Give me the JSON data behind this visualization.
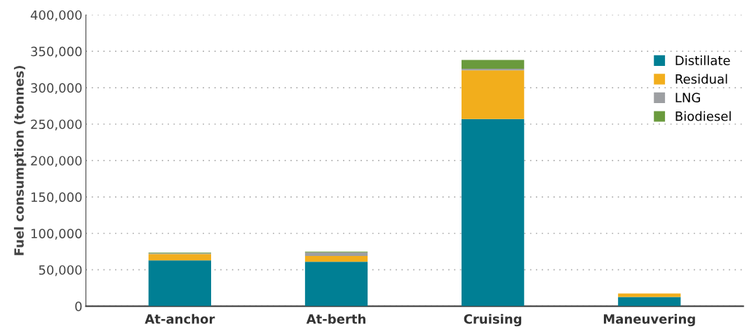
{
  "chart_data": {
    "type": "bar",
    "stacked": true,
    "ylabel": "Fuel consumption (tonnes)",
    "categories": [
      "At-anchor",
      "At-berth",
      "Cruising",
      "Maneuvering"
    ],
    "series": [
      {
        "name": "Distillate",
        "color": "#007f94",
        "values": [
          63000,
          61000,
          257000,
          12500
        ]
      },
      {
        "name": "Residual",
        "color": "#f2ae1c",
        "values": [
          8600,
          8000,
          67000,
          5000
        ]
      },
      {
        "name": "LNG",
        "color": "#9d9fa2",
        "values": [
          1000,
          5000,
          2000,
          0
        ]
      },
      {
        "name": "Biodiesel",
        "color": "#6a9a3d",
        "values": [
          1000,
          1000,
          12000,
          0
        ]
      }
    ],
    "ylim": [
      0,
      400000
    ],
    "yticks": [
      {
        "value": 0,
        "label": "0"
      },
      {
        "value": 50000,
        "label": "50,000"
      },
      {
        "value": 100000,
        "label": "100,000"
      },
      {
        "value": 150000,
        "label": "150,000"
      },
      {
        "value": 200000,
        "label": "200,000"
      },
      {
        "value": 250000,
        "label": "250,000"
      },
      {
        "value": 300000,
        "label": "300,000"
      },
      {
        "value": 350000,
        "label": "350,000"
      },
      {
        "value": 400000,
        "label": "400,000"
      }
    ],
    "grid": "y",
    "legend": "top right"
  }
}
